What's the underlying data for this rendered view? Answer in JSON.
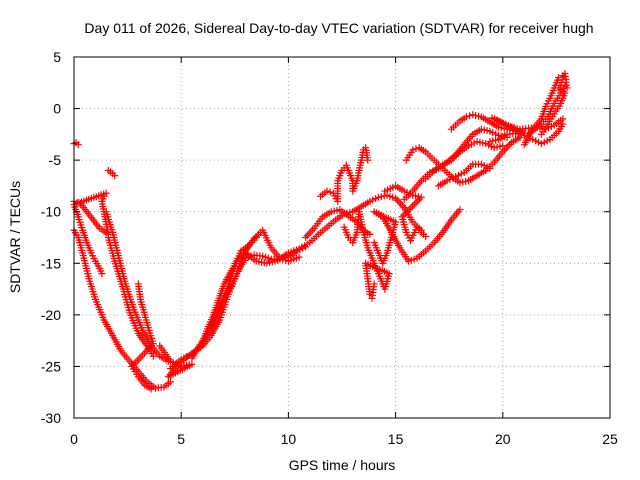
{
  "chart_data": {
    "type": "scatter",
    "title": "Day 011 of 2026, Sidereal Day-to-day VTEC variation (SDTVAR) for receiver hugh",
    "xlabel": "GPS time / hours",
    "ylabel": "SDTVAR / TECUs",
    "xlim": [
      0,
      25
    ],
    "ylim": [
      -30,
      5
    ],
    "xticks": [
      0,
      5,
      10,
      15,
      20,
      25
    ],
    "yticks": [
      -30,
      -25,
      -20,
      -15,
      -10,
      -5,
      0,
      5
    ],
    "grid": true,
    "marker": "plus",
    "color": "#ff0000",
    "series": [
      {
        "points": [
          [
            0.0,
            -3.4
          ],
          [
            0.1,
            -3.3
          ],
          [
            0.2,
            -3.5
          ],
          [
            0.0,
            -9.0
          ],
          [
            0.3,
            -9.2
          ],
          [
            0.6,
            -10.0
          ],
          [
            0.9,
            -10.8
          ],
          [
            1.2,
            -11.6
          ],
          [
            1.4,
            -11.9
          ],
          [
            1.6,
            -12.2
          ],
          [
            1.3,
            -9.0
          ],
          [
            1.4,
            -8.5
          ],
          [
            1.5,
            -8.2
          ],
          [
            0.0,
            -9.3
          ],
          [
            0.2,
            -10.5
          ],
          [
            0.4,
            -11.8
          ],
          [
            0.6,
            -13.0
          ],
          [
            0.8,
            -14.0
          ],
          [
            1.0,
            -14.8
          ],
          [
            1.2,
            -15.5
          ],
          [
            1.3,
            -16.0
          ],
          [
            1.6,
            -6.0
          ],
          [
            1.8,
            -6.3
          ],
          [
            1.9,
            -6.5
          ],
          [
            0.0,
            -11.8
          ],
          [
            0.2,
            -12.5
          ],
          [
            0.4,
            -14.0
          ],
          [
            0.7,
            -16.5
          ],
          [
            1.0,
            -18.5
          ],
          [
            1.4,
            -20.5
          ],
          [
            1.8,
            -22.0
          ],
          [
            2.2,
            -23.5
          ],
          [
            2.6,
            -24.5
          ],
          [
            3.0,
            -25.5
          ],
          [
            3.4,
            -26.5
          ],
          [
            3.8,
            -27.1
          ],
          [
            4.2,
            -27.0
          ],
          [
            4.5,
            -26.5
          ],
          [
            1.5,
            -10.0
          ],
          [
            1.8,
            -12.0
          ],
          [
            2.1,
            -14.5
          ],
          [
            2.4,
            -17.0
          ],
          [
            2.8,
            -19.5
          ],
          [
            3.2,
            -21.5
          ],
          [
            3.6,
            -23.0
          ],
          [
            4.0,
            -24.0
          ],
          [
            4.4,
            -24.5
          ],
          [
            1.6,
            -12.5
          ],
          [
            1.9,
            -14.8
          ],
          [
            2.3,
            -17.5
          ],
          [
            2.6,
            -19.8
          ],
          [
            3.0,
            -21.8
          ],
          [
            3.4,
            -23.0
          ],
          [
            3.7,
            -24.0
          ],
          [
            3.0,
            -17.0
          ],
          [
            3.1,
            -18.5
          ],
          [
            3.3,
            -20.0
          ],
          [
            3.5,
            -21.5
          ],
          [
            3.7,
            -22.8
          ],
          [
            2.7,
            -25.0
          ],
          [
            3.0,
            -26.0
          ],
          [
            3.3,
            -26.8
          ],
          [
            3.6,
            -27.2
          ],
          [
            4.0,
            -23.0
          ],
          [
            4.5,
            -24.5
          ],
          [
            5.0,
            -25.0
          ],
          [
            5.5,
            -24.8
          ],
          [
            4.4,
            -26.0
          ],
          [
            4.8,
            -25.0
          ],
          [
            5.2,
            -24.2
          ],
          [
            5.6,
            -23.6
          ],
          [
            6.0,
            -23.0
          ],
          [
            6.4,
            -22.0
          ],
          [
            6.8,
            -20.5
          ],
          [
            7.2,
            -18.0
          ],
          [
            7.6,
            -16.0
          ],
          [
            8.0,
            -14.5
          ],
          [
            8.4,
            -14.2
          ],
          [
            8.8,
            -14.3
          ],
          [
            9.2,
            -14.6
          ],
          [
            9.6,
            -14.6
          ],
          [
            10.0,
            -14.4
          ],
          [
            10.4,
            -13.8
          ],
          [
            10.8,
            -13.4
          ],
          [
            4.5,
            -25.2
          ],
          [
            5.0,
            -24.3
          ],
          [
            5.5,
            -23.8
          ],
          [
            6.0,
            -22.8
          ],
          [
            6.5,
            -20.8
          ],
          [
            7.0,
            -18.5
          ],
          [
            7.5,
            -16.5
          ],
          [
            8.0,
            -13.8
          ],
          [
            8.4,
            -12.6
          ],
          [
            8.8,
            -11.8
          ],
          [
            9.2,
            -13.5
          ],
          [
            9.6,
            -14.5
          ],
          [
            10.0,
            -14.8
          ],
          [
            10.5,
            -14.4
          ],
          [
            5.5,
            -24.2
          ],
          [
            6.0,
            -22.5
          ],
          [
            6.5,
            -20.0
          ],
          [
            7.0,
            -17.0
          ],
          [
            7.4,
            -15.5
          ],
          [
            7.8,
            -13.8
          ],
          [
            8.2,
            -13.2
          ],
          [
            8.5,
            -12.5
          ],
          [
            8.7,
            -12.0
          ],
          [
            6.8,
            -19.5
          ],
          [
            7.2,
            -17.2
          ],
          [
            7.6,
            -14.8
          ],
          [
            8.0,
            -14.0
          ],
          [
            8.5,
            -14.8
          ],
          [
            9.0,
            -15.0
          ],
          [
            9.5,
            -14.7
          ],
          [
            10.0,
            -14.0
          ],
          [
            10.5,
            -13.6
          ],
          [
            11.0,
            -13.0
          ],
          [
            11.4,
            -12.2
          ],
          [
            11.8,
            -11.5
          ],
          [
            12.2,
            -10.8
          ],
          [
            12.6,
            -10.2
          ],
          [
            13.0,
            -10.0
          ],
          [
            13.4,
            -9.5
          ],
          [
            13.8,
            -9.0
          ],
          [
            14.2,
            -8.6
          ],
          [
            14.6,
            -8.4
          ],
          [
            15.0,
            -8.7
          ],
          [
            15.4,
            -9.6
          ],
          [
            15.8,
            -11.0
          ],
          [
            16.2,
            -11.8
          ],
          [
            10.8,
            -12.5
          ],
          [
            11.2,
            -11.6
          ],
          [
            11.6,
            -10.5
          ],
          [
            12.0,
            -10.0
          ],
          [
            12.4,
            -9.8
          ],
          [
            12.8,
            -10.4
          ],
          [
            13.2,
            -11.0
          ],
          [
            13.5,
            -11.8
          ],
          [
            13.8,
            -12.2
          ],
          [
            11.5,
            -8.5
          ],
          [
            11.8,
            -8.0
          ],
          [
            12.1,
            -8.2
          ],
          [
            12.3,
            -9.0
          ],
          [
            12.3,
            -7.0
          ],
          [
            12.5,
            -6.0
          ],
          [
            12.7,
            -5.5
          ],
          [
            12.9,
            -6.5
          ],
          [
            13.0,
            -7.0
          ],
          [
            13.0,
            -8.0
          ],
          [
            13.2,
            -7.0
          ],
          [
            13.3,
            -6.0
          ],
          [
            13.4,
            -5.0
          ],
          [
            13.5,
            -4.0
          ],
          [
            13.6,
            -3.8
          ],
          [
            13.7,
            -5.0
          ],
          [
            12.6,
            -11.5
          ],
          [
            12.8,
            -12.5
          ],
          [
            13.0,
            -13.0
          ],
          [
            13.2,
            -12.0
          ],
          [
            13.3,
            -10.0
          ],
          [
            13.5,
            -12.0
          ],
          [
            13.7,
            -13.5
          ],
          [
            13.9,
            -14.5
          ],
          [
            14.1,
            -15.5
          ],
          [
            14.3,
            -16.5
          ],
          [
            14.5,
            -17.5
          ],
          [
            14.7,
            -16.0
          ],
          [
            13.6,
            -15.0
          ],
          [
            13.7,
            -16.5
          ],
          [
            13.8,
            -18.0
          ],
          [
            13.9,
            -18.4
          ],
          [
            14.0,
            -17.0
          ],
          [
            14.0,
            -13.0
          ],
          [
            14.2,
            -14.0
          ],
          [
            14.4,
            -15.0
          ],
          [
            14.6,
            -14.0
          ],
          [
            14.8,
            -12.5
          ],
          [
            15.0,
            -11.0
          ],
          [
            14.0,
            -10.0
          ],
          [
            14.4,
            -10.5
          ],
          [
            14.8,
            -12.0
          ],
          [
            15.2,
            -13.5
          ],
          [
            15.6,
            -14.8
          ],
          [
            16.0,
            -14.5
          ],
          [
            16.4,
            -13.8
          ],
          [
            16.8,
            -13.0
          ],
          [
            17.2,
            -12.0
          ],
          [
            17.6,
            -10.8
          ],
          [
            18.0,
            -9.8
          ],
          [
            14.5,
            -8.0
          ],
          [
            15.0,
            -7.5
          ],
          [
            15.4,
            -8.0
          ],
          [
            15.8,
            -8.4
          ],
          [
            16.2,
            -8.6
          ],
          [
            15.3,
            -10.5
          ],
          [
            15.5,
            -12.0
          ],
          [
            15.7,
            -12.8
          ],
          [
            16.0,
            -11.5
          ],
          [
            16.2,
            -12.0
          ],
          [
            16.4,
            -12.4
          ],
          [
            15.4,
            -8.8
          ],
          [
            15.8,
            -8.0
          ],
          [
            16.2,
            -7.0
          ],
          [
            16.6,
            -6.2
          ],
          [
            17.0,
            -5.8
          ],
          [
            17.4,
            -5.2
          ],
          [
            17.8,
            -4.5
          ],
          [
            18.2,
            -3.5
          ],
          [
            18.6,
            -2.5
          ],
          [
            19.0,
            -2.0
          ],
          [
            19.4,
            -2.2
          ],
          [
            19.8,
            -2.6
          ],
          [
            20.2,
            -2.8
          ],
          [
            15.5,
            -5.0
          ],
          [
            15.8,
            -4.0
          ],
          [
            16.1,
            -3.8
          ],
          [
            16.4,
            -4.2
          ],
          [
            16.8,
            -5.0
          ],
          [
            17.2,
            -5.8
          ],
          [
            17.6,
            -6.6
          ],
          [
            18.0,
            -7.2
          ],
          [
            18.4,
            -7.0
          ],
          [
            18.8,
            -6.5
          ],
          [
            19.2,
            -6.0
          ],
          [
            19.6,
            -5.2
          ],
          [
            20.0,
            -4.2
          ],
          [
            20.4,
            -3.3
          ],
          [
            20.8,
            -2.8
          ],
          [
            16.4,
            -6.8
          ],
          [
            16.8,
            -6.0
          ],
          [
            17.2,
            -5.5
          ],
          [
            17.6,
            -5.0
          ],
          [
            18.0,
            -4.2
          ],
          [
            18.4,
            -3.6
          ],
          [
            18.8,
            -3.2
          ],
          [
            19.2,
            -3.4
          ],
          [
            19.6,
            -3.8
          ],
          [
            20.0,
            -3.6
          ],
          [
            17.0,
            -7.5
          ],
          [
            17.4,
            -7.0
          ],
          [
            17.8,
            -6.6
          ],
          [
            18.2,
            -6.2
          ],
          [
            18.6,
            -5.4
          ],
          [
            19.0,
            -5.4
          ],
          [
            19.4,
            -5.8
          ],
          [
            17.6,
            -2.0
          ],
          [
            18.0,
            -1.2
          ],
          [
            18.3,
            -0.8
          ],
          [
            18.6,
            -0.6
          ],
          [
            19.0,
            -0.8
          ],
          [
            19.4,
            -1.3
          ],
          [
            19.8,
            -1.8
          ],
          [
            20.2,
            -2.0
          ],
          [
            20.6,
            -2.2
          ],
          [
            21.0,
            -2.4
          ],
          [
            19.5,
            -0.9
          ],
          [
            20.0,
            -1.4
          ],
          [
            20.4,
            -1.8
          ],
          [
            20.8,
            -2.0
          ],
          [
            21.2,
            -1.9
          ],
          [
            21.6,
            -1.8
          ],
          [
            22.0,
            -2.0
          ],
          [
            22.4,
            -1.6
          ],
          [
            22.8,
            -1.0
          ],
          [
            19.4,
            -3.2
          ],
          [
            19.8,
            -3.0
          ],
          [
            20.2,
            -2.5
          ],
          [
            20.6,
            -2.4
          ],
          [
            21.0,
            -2.6
          ],
          [
            21.4,
            -3.0
          ],
          [
            21.8,
            -3.4
          ],
          [
            22.2,
            -3.0
          ],
          [
            22.6,
            -2.2
          ],
          [
            22.8,
            -1.5
          ],
          [
            21.0,
            -3.5
          ],
          [
            21.4,
            -2.0
          ],
          [
            21.8,
            -1.0
          ],
          [
            22.0,
            0.2
          ],
          [
            22.2,
            1.0
          ],
          [
            22.4,
            2.0
          ],
          [
            22.6,
            3.0
          ],
          [
            22.8,
            3.2
          ],
          [
            21.2,
            -2.4
          ],
          [
            21.5,
            -2.0
          ],
          [
            21.8,
            -1.5
          ],
          [
            22.1,
            -0.8
          ],
          [
            22.4,
            0.5
          ],
          [
            22.7,
            1.5
          ],
          [
            22.9,
            2.2
          ],
          [
            21.8,
            -2.5
          ],
          [
            22.1,
            -1.5
          ],
          [
            22.4,
            -0.5
          ],
          [
            22.7,
            0.5
          ],
          [
            22.9,
            1.5
          ],
          [
            22.6,
            2.0
          ],
          [
            22.8,
            2.8
          ],
          [
            22.9,
            3.4
          ],
          [
            23.0,
            2.0
          ]
        ]
      }
    ]
  }
}
